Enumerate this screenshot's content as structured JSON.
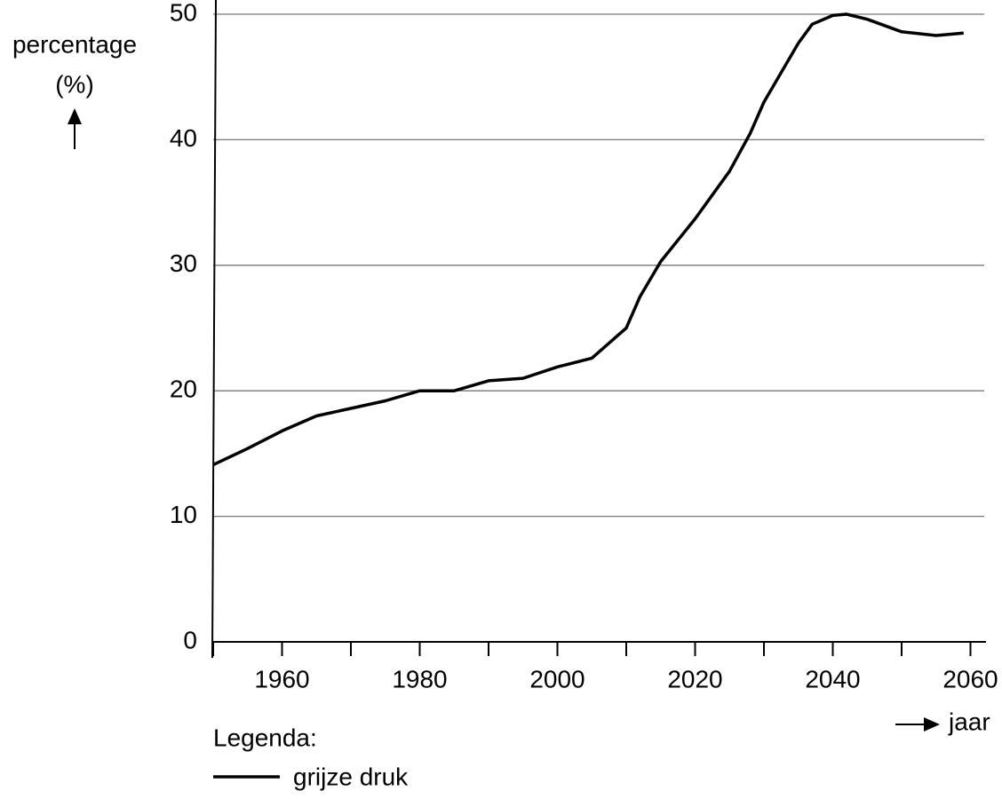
{
  "chart_data": {
    "type": "line",
    "y_label": "percentage",
    "y_unit": "(%)",
    "x_label": "jaar",
    "legend_title": "Legenda:",
    "x": [
      1950,
      1955,
      1960,
      1965,
      1970,
      1975,
      1980,
      1985,
      1990,
      1995,
      2000,
      2005,
      2010,
      2012,
      2015,
      2020,
      2025,
      2028,
      2030,
      2035,
      2037,
      2040,
      2042,
      2045,
      2050,
      2055,
      2059
    ],
    "series": [
      {
        "name": "grijze druk",
        "color": "#000000",
        "values": [
          14.1,
          15.4,
          16.8,
          18.0,
          18.6,
          19.2,
          20.0,
          20.0,
          20.8,
          21.0,
          21.9,
          22.6,
          25.0,
          27.5,
          30.3,
          33.7,
          37.5,
          40.5,
          43.0,
          47.7,
          49.2,
          49.9,
          50.0,
          49.6,
          48.6,
          48.3,
          48.5
        ]
      }
    ],
    "xlim": [
      1950,
      2062
    ],
    "xticks": [
      1960,
      1980,
      2000,
      2020,
      2040,
      2060
    ],
    "x_minor_ticks": [
      1950,
      1970,
      1990,
      2010,
      2030,
      2050
    ],
    "ylim": [
      0,
      50
    ],
    "yticks": [
      0,
      10,
      20,
      30,
      40,
      50
    ],
    "grid": true
  }
}
